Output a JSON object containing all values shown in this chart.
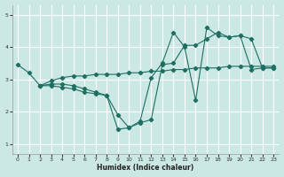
{
  "xlabel": "Humidex (Indice chaleur)",
  "bg_color": "#cce8e5",
  "grid_color": "#ffffff",
  "line_color": "#1e6e62",
  "xlim": [
    -0.5,
    23.5
  ],
  "ylim": [
    0.7,
    5.3
  ],
  "yticks": [
    1,
    2,
    3,
    4,
    5
  ],
  "xticks": [
    0,
    1,
    2,
    3,
    4,
    5,
    6,
    7,
    8,
    9,
    10,
    11,
    12,
    13,
    14,
    15,
    16,
    17,
    18,
    19,
    20,
    21,
    22,
    23
  ],
  "line1_x": [
    0,
    1,
    2,
    3,
    4,
    5,
    6,
    7,
    8,
    9,
    10,
    11,
    12,
    13,
    14,
    15,
    16,
    17,
    18,
    19,
    20,
    21,
    22,
    23
  ],
  "line1_y": [
    3.45,
    3.2,
    2.8,
    2.8,
    2.75,
    2.7,
    2.6,
    2.55,
    2.5,
    1.45,
    1.5,
    1.65,
    1.75,
    3.45,
    3.5,
    4.05,
    4.05,
    4.25,
    4.45,
    4.3,
    4.35,
    4.25,
    3.35,
    3.35
  ],
  "line2_x": [
    2,
    3,
    4,
    5,
    6,
    7,
    8,
    9,
    10,
    11,
    12,
    13,
    14,
    15,
    16,
    17,
    18,
    19,
    20,
    21,
    22,
    23
  ],
  "line2_y": [
    2.8,
    2.85,
    2.85,
    2.8,
    2.7,
    2.6,
    2.5,
    1.9,
    1.5,
    1.7,
    3.05,
    3.5,
    4.45,
    4.0,
    2.35,
    4.6,
    4.35,
    4.3,
    4.35,
    3.3,
    3.35,
    3.35
  ],
  "line3_x": [
    2,
    3,
    4,
    5,
    6,
    7,
    8,
    9,
    10,
    11,
    12,
    13,
    14,
    15,
    16,
    17,
    18,
    19,
    20,
    21,
    22,
    23
  ],
  "line3_y": [
    2.8,
    2.95,
    3.05,
    3.1,
    3.1,
    3.15,
    3.15,
    3.15,
    3.2,
    3.2,
    3.25,
    3.25,
    3.3,
    3.3,
    3.35,
    3.35,
    3.35,
    3.4,
    3.4,
    3.4,
    3.4,
    3.4
  ]
}
